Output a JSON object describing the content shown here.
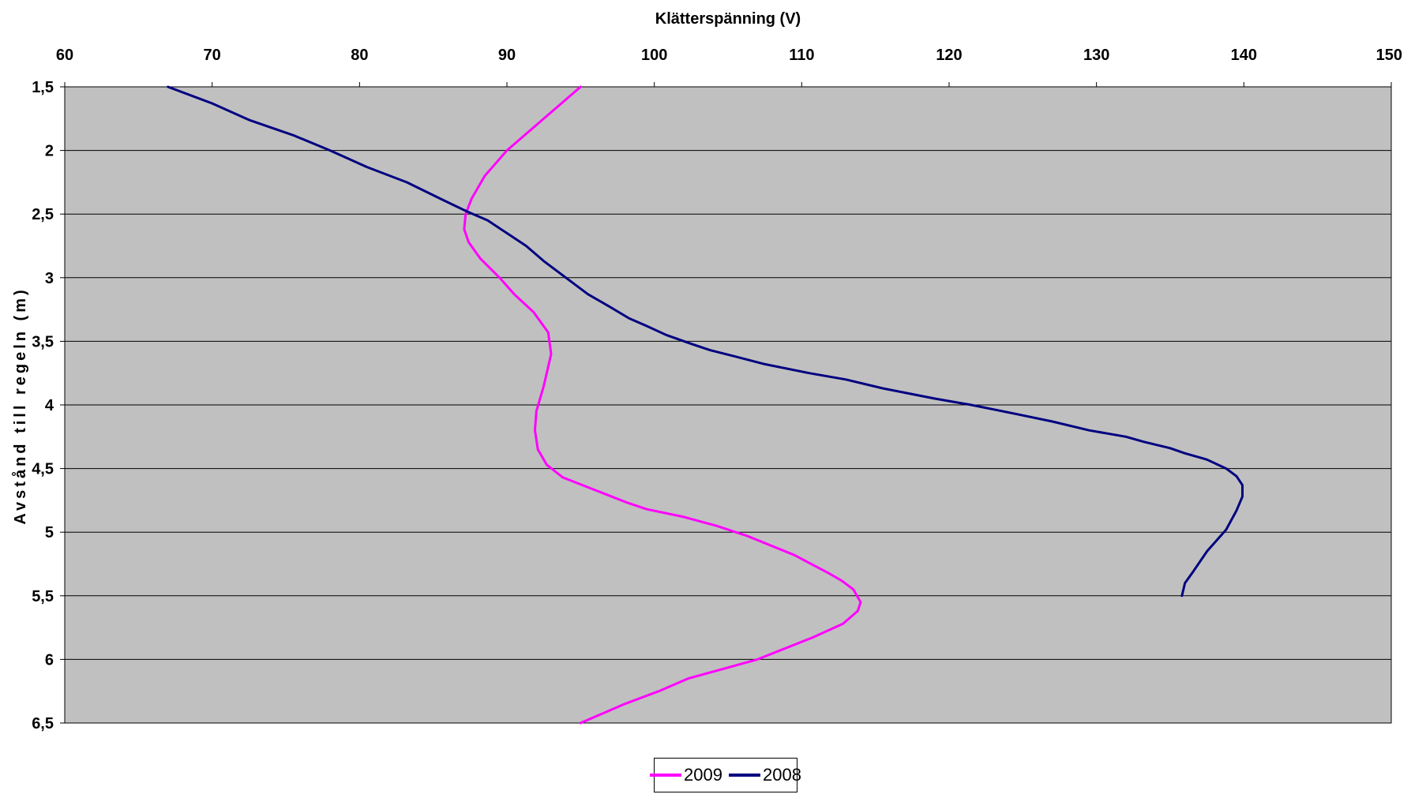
{
  "chart_data": {
    "type": "line",
    "orientation": "depth-profile",
    "title": "",
    "xlabel": "Klätterspänning (V)",
    "ylabel": "Avstånd till regeln (m)",
    "xlim": [
      60,
      150
    ],
    "ylim": [
      1.5,
      6.5
    ],
    "y_inverted": true,
    "x_axis_position": "top",
    "x_ticks": [
      "60",
      "70",
      "80",
      "90",
      "100",
      "110",
      "120",
      "130",
      "140",
      "150"
    ],
    "y_ticks": [
      "1,5",
      "2",
      "2,5",
      "3",
      "3,5",
      "4",
      "4,5",
      "5",
      "5,5",
      "6",
      "6,5"
    ],
    "x_tick_values": [
      60,
      70,
      80,
      90,
      100,
      110,
      120,
      130,
      140,
      150
    ],
    "y_tick_values": [
      1.5,
      2,
      2.5,
      3,
      3.5,
      4,
      4.5,
      5,
      5.5,
      6,
      6.5
    ],
    "grid": "horizontal",
    "plot_background": "#c0c0c0",
    "legend_position": "bottom-center",
    "series": [
      {
        "name": "2009",
        "color": "#ff00ff",
        "points": [
          [
            95,
            1.5
          ],
          [
            92.5,
            1.75
          ],
          [
            90,
            2.0
          ],
          [
            88.5,
            2.2
          ],
          [
            87.6,
            2.38
          ],
          [
            87.2,
            2.5
          ],
          [
            87.1,
            2.62
          ],
          [
            87.4,
            2.72
          ],
          [
            88.2,
            2.85
          ],
          [
            89.5,
            3.0
          ],
          [
            90.5,
            3.13
          ],
          [
            91.8,
            3.27
          ],
          [
            92.8,
            3.43
          ],
          [
            93,
            3.6
          ],
          [
            92.5,
            3.85
          ],
          [
            92,
            4.05
          ],
          [
            91.9,
            4.2
          ],
          [
            92.1,
            4.35
          ],
          [
            92.7,
            4.47
          ],
          [
            93.8,
            4.57
          ],
          [
            96,
            4.67
          ],
          [
            98.2,
            4.77
          ],
          [
            99.5,
            4.82
          ],
          [
            102,
            4.88
          ],
          [
            104.2,
            4.95
          ],
          [
            106.3,
            5.03
          ],
          [
            109.5,
            5.18
          ],
          [
            110.8,
            5.26
          ],
          [
            111.8,
            5.32
          ],
          [
            112.7,
            5.38
          ],
          [
            113.5,
            5.45
          ],
          [
            114,
            5.55
          ],
          [
            113.8,
            5.62
          ],
          [
            112.8,
            5.72
          ],
          [
            110.7,
            5.83
          ],
          [
            107,
            6.0
          ],
          [
            104.5,
            6.08
          ],
          [
            102.3,
            6.15
          ],
          [
            100.3,
            6.25
          ],
          [
            98,
            6.35
          ],
          [
            96,
            6.45
          ],
          [
            95,
            6.5
          ]
        ]
      },
      {
        "name": "2008",
        "color": "#000080",
        "points": [
          [
            67,
            1.5
          ],
          [
            70,
            1.63
          ],
          [
            72.5,
            1.76
          ],
          [
            75.5,
            1.88
          ],
          [
            78,
            2.0
          ],
          [
            80.5,
            2.13
          ],
          [
            83.2,
            2.25
          ],
          [
            85.5,
            2.38
          ],
          [
            87.3,
            2.48
          ],
          [
            88.7,
            2.55
          ],
          [
            90,
            2.65
          ],
          [
            91.3,
            2.75
          ],
          [
            92.5,
            2.87
          ],
          [
            94,
            3.0
          ],
          [
            95.5,
            3.13
          ],
          [
            97,
            3.23
          ],
          [
            98.3,
            3.32
          ],
          [
            99.5,
            3.38
          ],
          [
            100.8,
            3.45
          ],
          [
            102.5,
            3.52
          ],
          [
            103.8,
            3.57
          ],
          [
            105.5,
            3.62
          ],
          [
            107.5,
            3.68
          ],
          [
            110.5,
            3.75
          ],
          [
            113,
            3.8
          ],
          [
            115.5,
            3.87
          ],
          [
            119,
            3.95
          ],
          [
            121.5,
            4.0
          ],
          [
            124.5,
            4.07
          ],
          [
            127,
            4.13
          ],
          [
            129.5,
            4.2
          ],
          [
            132,
            4.25
          ],
          [
            133.2,
            4.29
          ],
          [
            135,
            4.34
          ],
          [
            136,
            4.38
          ],
          [
            137.5,
            4.43
          ],
          [
            138.8,
            4.5
          ],
          [
            139.5,
            4.56
          ],
          [
            139.9,
            4.63
          ],
          [
            139.9,
            4.72
          ],
          [
            139.5,
            4.83
          ],
          [
            138.8,
            4.98
          ],
          [
            137.5,
            5.15
          ],
          [
            136.5,
            5.32
          ],
          [
            136,
            5.4
          ],
          [
            135.8,
            5.5
          ]
        ]
      }
    ]
  }
}
